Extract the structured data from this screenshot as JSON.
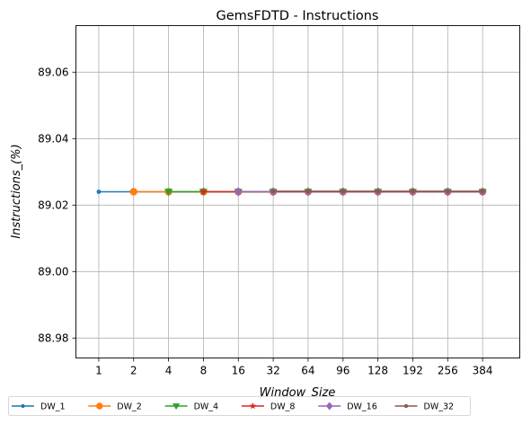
{
  "chart_data": {
    "type": "line",
    "title": "GemsFDTD - Instructions",
    "xlabel": "Window_Size",
    "ylabel": "Instructions_(%)",
    "categories": [
      "1",
      "2",
      "4",
      "8",
      "16",
      "32",
      "64",
      "96",
      "128",
      "192",
      "256",
      "384"
    ],
    "yticks": [
      "88.98",
      "89.00",
      "89.02",
      "89.04",
      "89.06"
    ],
    "ylim": [
      88.974,
      89.074
    ],
    "grid": true,
    "legend_position": "bottom, below plot",
    "series": [
      {
        "name": "DW_1",
        "color": "#1f77b4",
        "marker": "point",
        "values": [
          89.024,
          89.024,
          89.024,
          89.024,
          89.024,
          89.024,
          89.024,
          89.024,
          89.024,
          89.024,
          89.024,
          89.024
        ]
      },
      {
        "name": "DW_2",
        "color": "#ff7f0e",
        "marker": "circle",
        "values": [
          null,
          89.024,
          89.024,
          89.024,
          89.024,
          89.024,
          89.024,
          89.024,
          89.024,
          89.024,
          89.024,
          89.024
        ]
      },
      {
        "name": "DW_4",
        "color": "#2ca02c",
        "marker": "triangle-down",
        "values": [
          null,
          null,
          89.024,
          89.024,
          89.024,
          89.024,
          89.024,
          89.024,
          89.024,
          89.024,
          89.024,
          89.024
        ]
      },
      {
        "name": "DW_8",
        "color": "#d62728",
        "marker": "star",
        "values": [
          null,
          null,
          null,
          89.024,
          89.024,
          89.024,
          89.024,
          89.024,
          89.024,
          89.024,
          89.024,
          89.024
        ]
      },
      {
        "name": "DW_16",
        "color": "#9467bd",
        "marker": "diamond",
        "values": [
          null,
          null,
          null,
          null,
          89.024,
          89.024,
          89.024,
          89.024,
          89.024,
          89.024,
          89.024,
          89.024
        ]
      },
      {
        "name": "DW_32",
        "color": "#8c564b",
        "marker": "point",
        "values": [
          null,
          null,
          null,
          null,
          null,
          89.024,
          89.024,
          89.024,
          89.024,
          89.024,
          89.024,
          89.024
        ]
      }
    ]
  }
}
